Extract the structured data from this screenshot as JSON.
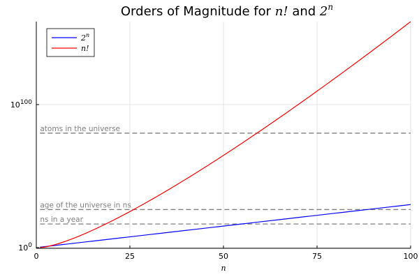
{
  "chart_data": {
    "type": "line",
    "title_prefix": "Orders of Magnitude for ",
    "title_math_1": "n!",
    "title_mid": " and ",
    "title_math_2_base": "2",
    "title_math_2_exp": "n",
    "xlabel": "n",
    "ylabel": "",
    "xlim": [
      0,
      100
    ],
    "xticks": [
      0,
      25,
      50,
      75,
      100
    ],
    "yscale": "log10",
    "ylim_log10": [
      -0.5,
      158
    ],
    "yticks": [
      {
        "log10": 0,
        "base": "10",
        "exp": "0"
      },
      {
        "log10": 100,
        "base": "10",
        "exp": "100"
      }
    ],
    "grid": true,
    "legend_position": "top-left",
    "series": [
      {
        "name_base": "2",
        "name_exp": "n",
        "color": "#0000ff",
        "formula": "2^n",
        "n_range": [
          1,
          100
        ]
      },
      {
        "name_base": "n!",
        "name_exp": "",
        "color": "#ff0000",
        "formula": "n!",
        "n_range": [
          1,
          100
        ]
      }
    ],
    "reference_lines": [
      {
        "label": "atoms in the universe",
        "value_log10": 80
      },
      {
        "label": "age of the universe in ns",
        "value_log10": 26.6
      },
      {
        "label": "ns in a year",
        "value_log10": 16.5
      }
    ]
  }
}
